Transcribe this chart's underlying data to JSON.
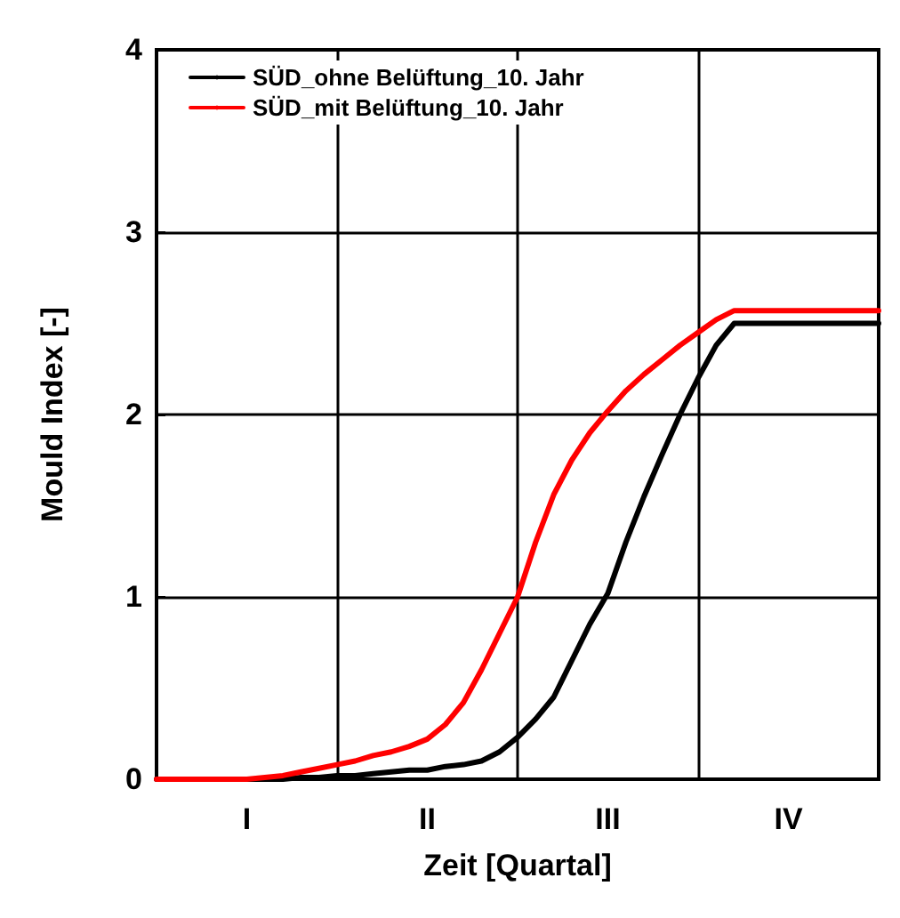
{
  "chart_data": {
    "type": "line",
    "xlabel": "Zeit [Quartal]",
    "ylabel": "Mould Index [-]",
    "categories": [
      null,
      null,
      null,
      null,
      null,
      "I",
      null,
      null,
      null,
      null,
      null,
      null,
      null,
      null,
      null,
      "II",
      null,
      null,
      null,
      null,
      null,
      null,
      null,
      null,
      null,
      "III",
      null,
      null,
      null,
      null,
      null,
      null,
      null,
      null,
      null,
      "IV",
      null,
      null,
      null,
      null,
      null
    ],
    "ylim": [
      0,
      4
    ],
    "yticks": [
      0,
      1,
      2,
      3,
      4
    ],
    "grid": true,
    "legend": "top left",
    "line_style": "solid",
    "marker": "none",
    "series": [
      {
        "name": "SÜD_ohne Belüftung_10. Jahr",
        "color": "#000000",
        "values": [
          0,
          0,
          0,
          0,
          0,
          0,
          0,
          0,
          0.01,
          0.01,
          0.02,
          0.02,
          0.03,
          0.04,
          0.05,
          0.05,
          0.07,
          0.08,
          0.1,
          0.15,
          0.23,
          0.33,
          0.45,
          0.65,
          0.85,
          1.02,
          1.3,
          1.55,
          1.78,
          2.0,
          2.2,
          2.38,
          2.5,
          2.5,
          2.5,
          2.5,
          2.5,
          2.5,
          2.5,
          2.5,
          2.5
        ]
      },
      {
        "name": "SÜD_mit Belüftung_10. Jahr",
        "color": "#ff0000",
        "values": [
          0,
          0,
          0,
          0,
          0,
          0,
          0.01,
          0.02,
          0.04,
          0.06,
          0.08,
          0.1,
          0.13,
          0.15,
          0.18,
          0.22,
          0.3,
          0.42,
          0.6,
          0.8,
          1.0,
          1.3,
          1.56,
          1.75,
          1.9,
          2.02,
          2.13,
          2.22,
          2.3,
          2.38,
          2.45,
          2.52,
          2.57,
          2.57,
          2.57,
          2.57,
          2.57,
          2.57,
          2.57,
          2.57,
          2.57
        ]
      }
    ]
  }
}
